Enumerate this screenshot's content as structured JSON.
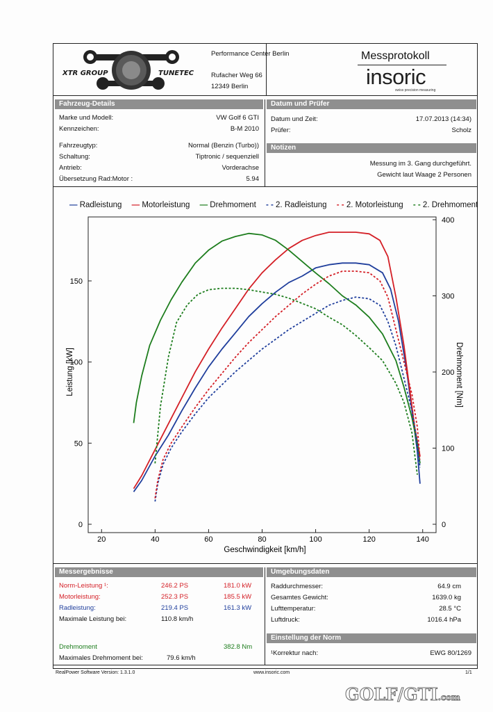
{
  "header": {
    "company": "Performance Center Berlin",
    "street": "Rufacher Weg 66",
    "city": "12349 Berlin",
    "logo_left": "XTR GROUP",
    "logo_right": "TUNETEC",
    "title": "Messprotokoll",
    "brand": "insoric",
    "brand_tagline": "swiss precision measuring"
  },
  "vehicle": {
    "section": "Fahrzeug-Details",
    "rows": [
      {
        "label": "Marke und Modell:",
        "value": "VW Golf 6 GTI"
      },
      {
        "label": "Kennzeichen:",
        "value": "B-M 2010"
      },
      {
        "label": "Fahrzeugtyp:",
        "value": "Normal (Benzin (Turbo))"
      },
      {
        "label": "Schaltung:",
        "value": "Tiptronic / sequenziell"
      },
      {
        "label": "Antrieb:",
        "value": "Vorderachse"
      },
      {
        "label": "Übersetzung Rad:Motor :",
        "value": "5.94"
      }
    ]
  },
  "date": {
    "section": "Datum und Prüfer",
    "rows": [
      {
        "label": "Datum und Zeit:",
        "value": "17.07.2013 (14:34)"
      },
      {
        "label": "Prüfer:",
        "value": "Scholz"
      }
    ]
  },
  "notes": {
    "section": "Notizen",
    "line1": "Messung im 3. Gang durchgeführt.",
    "line2": "Gewicht laut Waage 2 Personen"
  },
  "chart_data": {
    "type": "line",
    "xlabel": "Geschwindigkeit [km/h]",
    "ylabel": "Leistung [kW]",
    "y2label": "Drehmoment [Nm]",
    "xlim": [
      15,
      145
    ],
    "ylim": [
      0,
      190
    ],
    "y2lim": [
      0,
      400
    ],
    "xticks": [
      20,
      40,
      60,
      80,
      100,
      120,
      140
    ],
    "yticks": [
      0,
      50,
      100,
      150
    ],
    "y2ticks": [
      0,
      100,
      200,
      300,
      400
    ],
    "grid": false,
    "legend_position": "top",
    "series": [
      {
        "name": "Radleistung",
        "axis": "left",
        "color": "#1f3e9c",
        "dash": false,
        "x": [
          32,
          35,
          40,
          45,
          50,
          55,
          60,
          65,
          70,
          75,
          80,
          85,
          90,
          95,
          100,
          105,
          110,
          115,
          120,
          125,
          128,
          131,
          134,
          136,
          138,
          139
        ],
        "y": [
          20,
          27,
          42,
          55,
          70,
          84,
          97,
          108,
          118,
          128,
          136,
          143,
          149,
          153,
          158,
          160,
          161,
          161,
          160,
          155,
          145,
          125,
          95,
          70,
          45,
          25
        ]
      },
      {
        "name": "Motorleistung",
        "axis": "left",
        "color": "#d41f26",
        "dash": false,
        "x": [
          32,
          35,
          40,
          45,
          50,
          55,
          60,
          65,
          70,
          75,
          80,
          85,
          90,
          95,
          100,
          105,
          110,
          115,
          120,
          124,
          127,
          130,
          133,
          135,
          137,
          139
        ],
        "y": [
          22,
          30,
          46,
          62,
          78,
          94,
          108,
          121,
          133,
          145,
          155,
          163,
          170,
          175,
          178,
          180,
          180,
          180,
          179,
          175,
          165,
          140,
          110,
          85,
          60,
          42
        ]
      },
      {
        "name": "Drehmoment",
        "axis": "right",
        "color": "#1d7d1d",
        "dash": false,
        "x": [
          32,
          33,
          35,
          38,
          42,
          46,
          50,
          55,
          60,
          65,
          70,
          75,
          80,
          85,
          90,
          95,
          100,
          105,
          110,
          115,
          120,
          125,
          130,
          133,
          136,
          138,
          139
        ],
        "y": [
          133,
          160,
          195,
          235,
          268,
          295,
          318,
          343,
          360,
          372,
          378,
          382,
          380,
          373,
          360,
          345,
          330,
          316,
          300,
          288,
          272,
          250,
          215,
          180,
          140,
          105,
          80
        ]
      },
      {
        "name": "2. Radleistung",
        "axis": "left",
        "color": "#1f3e9c",
        "dash": true,
        "x": [
          40,
          41,
          43,
          46,
          50,
          55,
          60,
          65,
          70,
          75,
          80,
          85,
          90,
          95,
          100,
          105,
          110,
          115,
          120,
          124,
          127,
          130,
          133,
          136,
          138,
          139
        ],
        "y": [
          14,
          25,
          37,
          47,
          57,
          68,
          78,
          86,
          94,
          101,
          108,
          114,
          120,
          125,
          130,
          135,
          138,
          140,
          139,
          135,
          125,
          110,
          90,
          70,
          50,
          35
        ]
      },
      {
        "name": "2. Motorleistung",
        "axis": "left",
        "color": "#d41f26",
        "dash": true,
        "x": [
          40,
          41,
          43,
          46,
          50,
          55,
          60,
          65,
          70,
          75,
          80,
          85,
          90,
          95,
          100,
          105,
          110,
          115,
          120,
          124,
          127,
          130,
          133,
          136,
          138,
          139
        ],
        "y": [
          16,
          27,
          40,
          50,
          60,
          72,
          83,
          93,
          103,
          112,
          120,
          128,
          135,
          142,
          148,
          153,
          156,
          156,
          155,
          150,
          140,
          120,
          100,
          80,
          60,
          40
        ]
      },
      {
        "name": "2. Drehmoment",
        "axis": "right",
        "color": "#1d7d1d",
        "dash": true,
        "x": [
          40,
          42,
          45,
          48,
          52,
          56,
          60,
          65,
          70,
          75,
          80,
          85,
          90,
          95,
          100,
          105,
          110,
          115,
          120,
          125,
          130,
          133,
          136,
          138
        ],
        "y": [
          80,
          155,
          220,
          265,
          288,
          302,
          308,
          310,
          310,
          308,
          305,
          302,
          297,
          290,
          283,
          272,
          262,
          248,
          232,
          215,
          185,
          160,
          120,
          65
        ]
      }
    ]
  },
  "results": {
    "section": "Messergebnisse",
    "norm_label": "Norm-Leistung ¹:",
    "norm_ps": "246.2 PS",
    "norm_kw": "181.0 kW",
    "motor_label": "Motorleistung:",
    "motor_ps": "252.3 PS",
    "motor_kw": "185.5 kW",
    "rad_label": "Radleistung:",
    "rad_ps": "219.4 PS",
    "rad_kw": "161.3 kW",
    "max_label": "Maximale Leistung bei:",
    "max_value": "110.8 km/h",
    "torque_label": "Drehmoment",
    "torque_value": "382.8 Nm",
    "max_torque_label": "Maximales Drehmoment bei:",
    "max_torque_value": "79.6 km/h"
  },
  "environment": {
    "section": "Umgebungsdaten",
    "rows": [
      {
        "label": "Raddurchmesser:",
        "value": "64.9 cm"
      },
      {
        "label": "Gesamtes Gewicht:",
        "value": "1639.0 kg"
      },
      {
        "label": "Lufttemperatur:",
        "value": "28.5 °C"
      },
      {
        "label": "Luftdruck:",
        "value": "1016.4 hPa"
      }
    ]
  },
  "norm": {
    "section": "Einstellung der Norm",
    "label": "¹Korrektur nach:",
    "value": "EWG 80/1269"
  },
  "footer": {
    "software": "RealPower Software Version: 1.3.1.0",
    "url": "www.insoric.com",
    "page": "1/1",
    "watermark_a": "GOLF",
    "watermark_b": "GTI",
    "watermark_c": ".com"
  }
}
